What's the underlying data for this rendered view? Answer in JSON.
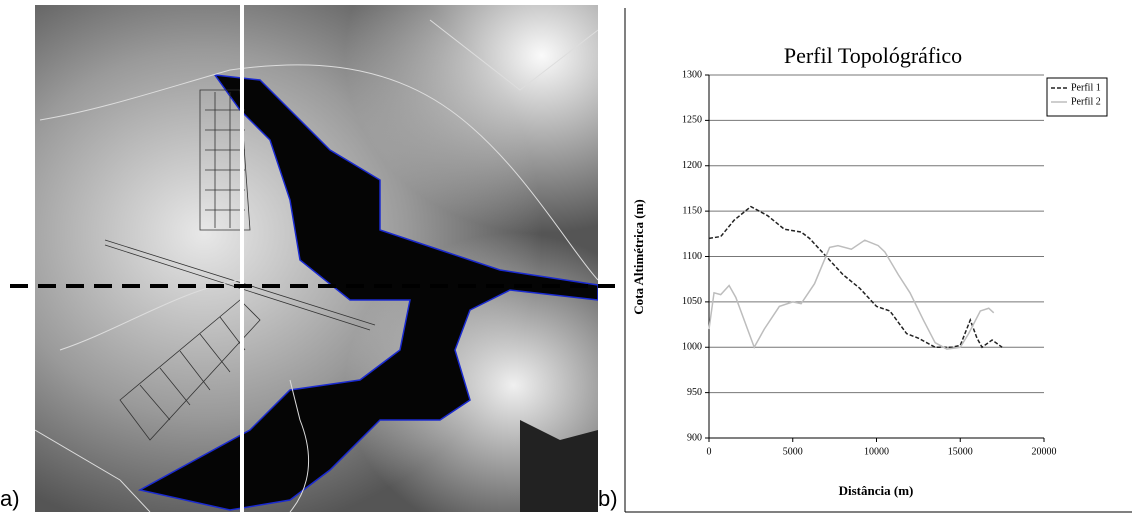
{
  "panel_labels": [
    "a)",
    "b)"
  ],
  "chart_data": {
    "type": "line",
    "title": "Perfil Topológráfico",
    "xlabel": "Distância (m)",
    "ylabel": "Cota Altimétrica (m)",
    "xlim": [
      0,
      20000
    ],
    "xticks": [
      0,
      5000,
      10000,
      15000,
      20000
    ],
    "ylim": [
      900,
      1300
    ],
    "yticks": [
      900,
      950,
      1000,
      1050,
      1100,
      1150,
      1200,
      1250,
      1300
    ],
    "grid": true,
    "legend": "right",
    "series": [
      {
        "name": "Perfil 1",
        "color": "#222222",
        "line_style": "dashed",
        "x": [
          0,
          700,
          1500,
          2500,
          3500,
          4500,
          5500,
          6000,
          7000,
          8000,
          9000,
          10000,
          10800,
          11800,
          12500,
          13500,
          14500,
          15000,
          15600,
          16000,
          16300,
          16900,
          17500
        ],
        "values": [
          1120,
          1122,
          1140,
          1155,
          1145,
          1130,
          1127,
          1120,
          1100,
          1080,
          1065,
          1045,
          1040,
          1015,
          1010,
          1000,
          1000,
          1002,
          1030,
          1010,
          1000,
          1008,
          1000
        ]
      },
      {
        "name": "Perfil 2",
        "color": "#bdbdbd",
        "line_style": "solid",
        "x": [
          0,
          300,
          700,
          1200,
          1600,
          2300,
          2700,
          3300,
          4200,
          5000,
          5500,
          6300,
          7200,
          7700,
          8500,
          9300,
          10100,
          10500,
          11300,
          12000,
          12800,
          13500,
          14200,
          15000,
          15500,
          16200,
          16700,
          17000
        ],
        "values": [
          1020,
          1060,
          1058,
          1068,
          1055,
          1020,
          1000,
          1020,
          1045,
          1050,
          1048,
          1070,
          1110,
          1112,
          1108,
          1118,
          1112,
          1105,
          1080,
          1060,
          1030,
          1005,
          998,
          1000,
          1015,
          1040,
          1043,
          1038
        ]
      }
    ]
  }
}
